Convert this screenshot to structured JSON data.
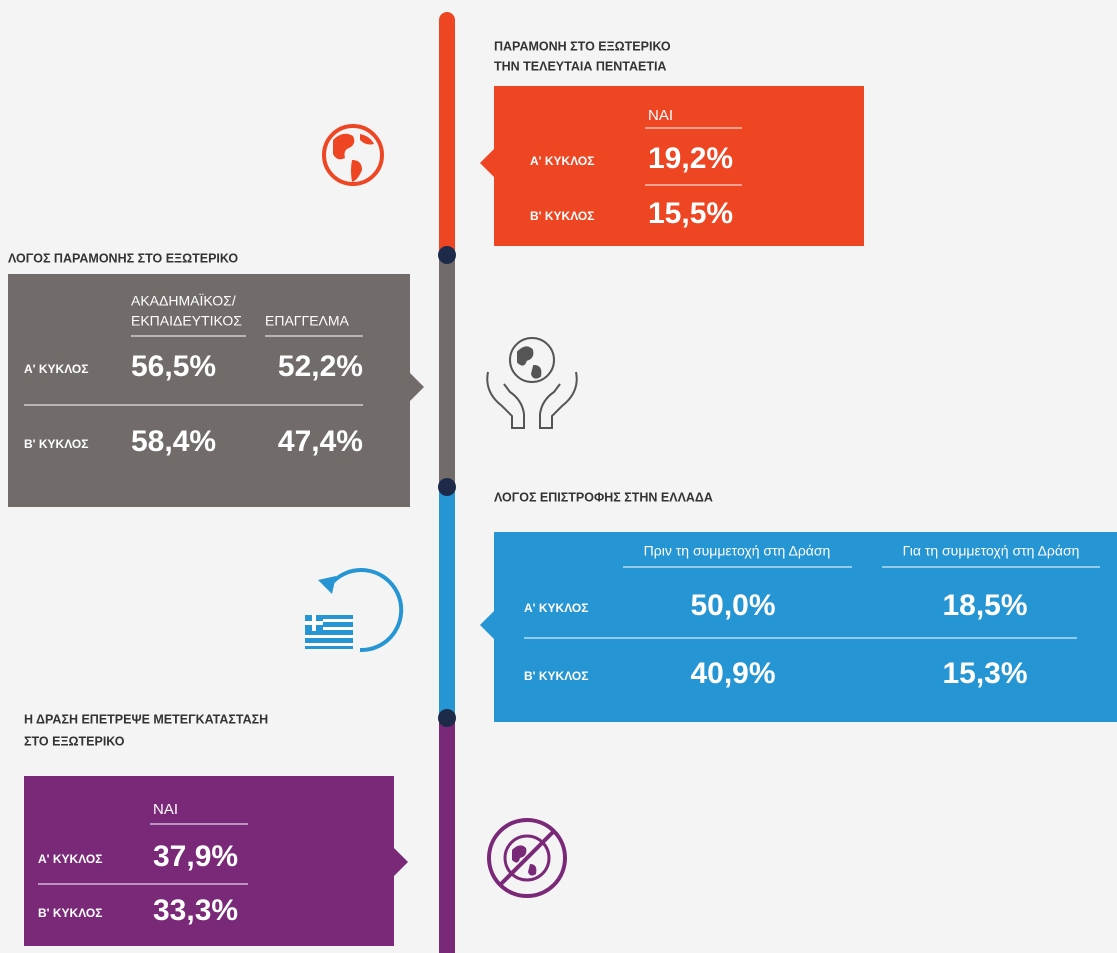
{
  "sections": [
    {
      "title": [
        "ΠΑΡΑΜΟΝΗ ΣΤΟ ΕΞΩΤΕΡΙΚΟ",
        "ΤΗΝ ΤΕΛΕΥΤΑΙΑ ΠΕΝΤΑΕΤΙΑ"
      ],
      "columns": [
        [
          "ΝΑΙ"
        ]
      ],
      "rows": [
        {
          "label": "Α' ΚΥΚΛΟΣ",
          "values": [
            "19,2%"
          ]
        },
        {
          "label": "Β' ΚΥΚΛΟΣ",
          "values": [
            "15,5%"
          ]
        }
      ]
    },
    {
      "title": [
        "ΛΟΓΟΣ ΠΑΡΑΜΟΝΗΣ ΣΤΟ ΕΞΩΤΕΡΙΚΟ"
      ],
      "columns": [
        [
          "ΑΚΑΔΗΜΑΪΚΟΣ/",
          "ΕΚΠΑΙΔΕΥΤΙΚΟΣ"
        ],
        [
          "ΕΠΑΓΓΕΛΜΑ"
        ]
      ],
      "rows": [
        {
          "label": "Α' ΚΥΚΛΟΣ",
          "values": [
            "56,5%",
            "52,2%"
          ]
        },
        {
          "label": "Β' ΚΥΚΛΟΣ",
          "values": [
            "58,4%",
            "47,4%"
          ]
        }
      ]
    },
    {
      "title": [
        "ΛΟΓΟΣ ΕΠΙΣΤΡΟΦΗΣ ΣΤΗΝ ΕΛΛΑΔΑ"
      ],
      "columns": [
        [
          "Πριν τη συμμετοχή στη Δράση"
        ],
        [
          "Για τη συμμετοχή στη Δράση"
        ]
      ],
      "rows": [
        {
          "label": "Α' ΚΥΚΛΟΣ",
          "values": [
            "50,0%",
            "18,5%"
          ]
        },
        {
          "label": "Β' ΚΥΚΛΟΣ",
          "values": [
            "40,9%",
            "15,3%"
          ]
        }
      ]
    },
    {
      "title": [
        "Η ΔΡΑΣΗ ΕΠΕΤΡΕΨΕ ΜΕΤΕΓΚΑΤΑΣΤΑΣΗ",
        "ΣΤΟ ΕΞΩΤΕΡΙΚΟ"
      ],
      "columns": [
        [
          "ΝΑΙ"
        ]
      ],
      "rows": [
        {
          "label": "Α' ΚΥΚΛΟΣ",
          "values": [
            "37,9%"
          ]
        },
        {
          "label": "Β' ΚΥΚΛΟΣ",
          "values": [
            "33,3%"
          ]
        }
      ]
    }
  ]
}
